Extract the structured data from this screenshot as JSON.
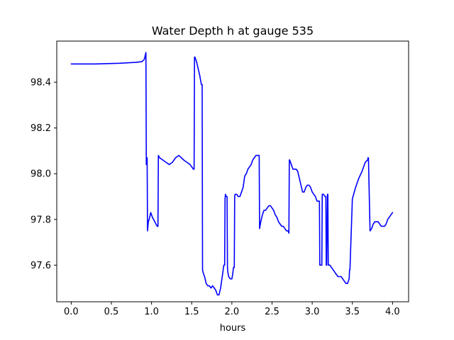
{
  "chart_data": {
    "type": "line",
    "title": "Water Depth h at gauge 535",
    "xlabel": "hours",
    "ylabel": "",
    "xlim": [
      -0.18,
      4.2
    ],
    "ylim": [
      97.44,
      98.58
    ],
    "xticks": [
      0.0,
      0.5,
      1.0,
      1.5,
      2.0,
      2.5,
      3.0,
      3.5,
      4.0
    ],
    "xtick_labels": [
      "0.0",
      "0.5",
      "1.0",
      "1.5",
      "2.0",
      "2.5",
      "3.0",
      "3.5",
      "4.0"
    ],
    "yticks": [
      97.6,
      97.8,
      98.0,
      98.2,
      98.4
    ],
    "ytick_labels": [
      "97.6",
      "97.8",
      "98.0",
      "98.2",
      "98.4"
    ],
    "grid": false,
    "legend": "none",
    "series": [
      {
        "color": "#0000ff",
        "x": [
          0.0,
          0.3,
          0.6,
          0.8,
          0.88,
          0.91,
          0.93,
          0.935,
          0.94,
          0.945,
          0.95,
          0.955,
          0.96,
          0.97,
          0.99,
          1.01,
          1.04,
          1.07,
          1.08,
          1.085,
          1.1,
          1.14,
          1.18,
          1.22,
          1.26,
          1.3,
          1.34,
          1.37,
          1.4,
          1.44,
          1.48,
          1.52,
          1.53,
          1.535,
          1.54,
          1.56,
          1.58,
          1.6,
          1.62,
          1.63,
          1.635,
          1.64,
          1.66,
          1.68,
          1.7,
          1.72,
          1.74,
          1.76,
          1.78,
          1.8,
          1.82,
          1.84,
          1.86,
          1.88,
          1.9,
          1.91,
          1.915,
          1.92,
          1.93,
          1.94,
          1.945,
          1.95,
          1.96,
          1.98,
          2.0,
          2.01,
          2.02,
          2.03,
          2.035,
          2.04,
          2.06,
          2.08,
          2.1,
          2.12,
          2.14,
          2.16,
          2.18,
          2.2,
          2.22,
          2.24,
          2.26,
          2.28,
          2.3,
          2.32,
          2.34,
          2.345,
          2.35,
          2.36,
          2.38,
          2.4,
          2.42,
          2.44,
          2.46,
          2.48,
          2.5,
          2.52,
          2.54,
          2.56,
          2.58,
          2.6,
          2.62,
          2.64,
          2.66,
          2.68,
          2.7,
          2.71,
          2.715,
          2.72,
          2.74,
          2.76,
          2.78,
          2.8,
          2.82,
          2.84,
          2.86,
          2.88,
          2.9,
          2.92,
          2.94,
          2.96,
          2.98,
          3.0,
          3.02,
          3.04,
          3.06,
          3.08,
          3.09,
          3.095,
          3.1,
          3.12,
          3.125,
          3.13,
          3.14,
          3.16,
          3.17,
          3.175,
          3.18,
          3.19,
          3.195,
          3.2,
          3.22,
          3.24,
          3.26,
          3.28,
          3.3,
          3.32,
          3.34,
          3.36,
          3.38,
          3.4,
          3.42,
          3.44,
          3.46,
          3.465,
          3.47,
          3.5,
          3.54,
          3.58,
          3.62,
          3.66,
          3.69,
          3.695,
          3.7,
          3.72,
          3.74,
          3.76,
          3.78,
          3.8,
          3.82,
          3.84,
          3.86,
          3.88,
          3.9,
          3.92,
          3.94,
          3.96,
          3.98,
          4.0
        ],
        "y": [
          98.48,
          98.48,
          98.483,
          98.487,
          98.49,
          98.5,
          98.53,
          98.04,
          98.06,
          98.07,
          97.75,
          97.77,
          97.79,
          97.8,
          97.83,
          97.81,
          97.79,
          97.77,
          97.77,
          98.08,
          98.07,
          98.06,
          98.05,
          98.04,
          98.05,
          98.07,
          98.08,
          98.07,
          98.06,
          98.05,
          98.04,
          98.02,
          98.02,
          98.51,
          98.51,
          98.49,
          98.46,
          98.43,
          98.39,
          98.39,
          97.58,
          97.57,
          97.55,
          97.52,
          97.51,
          97.51,
          97.5,
          97.51,
          97.5,
          97.49,
          97.47,
          97.47,
          97.5,
          97.55,
          97.6,
          97.6,
          97.89,
          97.91,
          97.9,
          97.9,
          97.59,
          97.57,
          97.55,
          97.54,
          97.54,
          97.56,
          97.59,
          97.59,
          97.9,
          97.91,
          97.91,
          97.9,
          97.9,
          97.92,
          97.94,
          97.99,
          98.0,
          98.02,
          98.03,
          98.04,
          98.06,
          98.07,
          98.08,
          98.08,
          98.08,
          97.76,
          97.77,
          97.79,
          97.82,
          97.84,
          97.84,
          97.85,
          97.86,
          97.86,
          97.85,
          97.84,
          97.82,
          97.81,
          97.79,
          97.78,
          97.77,
          97.77,
          97.76,
          97.75,
          97.75,
          97.74,
          98.06,
          98.06,
          98.04,
          98.02,
          98.02,
          98.02,
          98.01,
          97.98,
          97.95,
          97.92,
          97.92,
          97.94,
          97.95,
          97.95,
          97.94,
          97.92,
          97.91,
          97.9,
          97.88,
          97.88,
          97.88,
          97.6,
          97.6,
          97.6,
          97.91,
          97.91,
          97.91,
          97.9,
          97.9,
          97.6,
          97.6,
          97.91,
          97.91,
          97.6,
          97.6,
          97.59,
          97.58,
          97.57,
          97.56,
          97.55,
          97.55,
          97.55,
          97.54,
          97.53,
          97.52,
          97.52,
          97.54,
          97.58,
          97.58,
          97.89,
          97.94,
          97.98,
          98.01,
          98.05,
          98.06,
          98.07,
          98.07,
          97.75,
          97.76,
          97.78,
          97.79,
          97.79,
          97.79,
          97.78,
          97.77,
          97.77,
          97.77,
          97.78,
          97.8,
          97.81,
          97.82,
          97.83
        ]
      }
    ]
  }
}
